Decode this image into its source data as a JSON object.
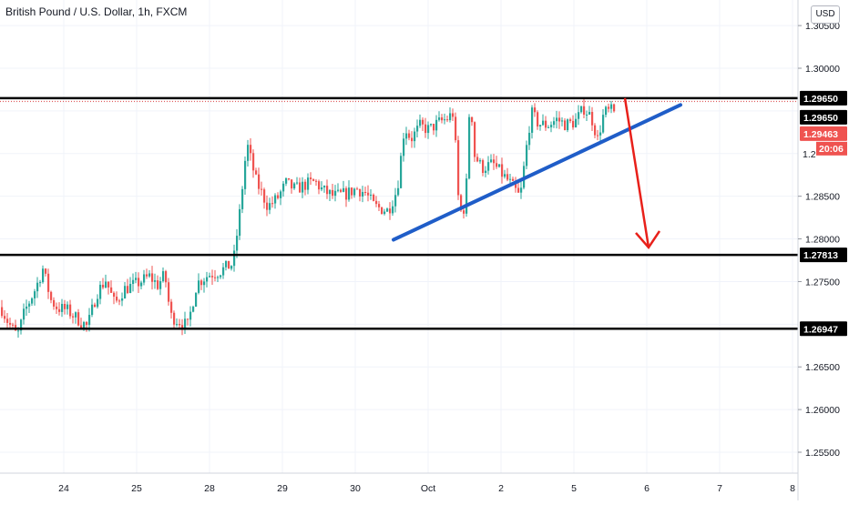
{
  "title": "British Pound / U.S. Dollar, 1h, FXCM",
  "currency_label": "USD",
  "colors": {
    "up": "#26a69a",
    "down": "#ef5350",
    "level_line": "#000000",
    "trendline": "#1f5dc8",
    "arrow": "#e8201a",
    "price_label_bg": "#000000",
    "current_price_bg": "#ef5350",
    "grid": "#f0f3fa"
  },
  "chart_data": {
    "type": "candlestick",
    "title": "British Pound / U.S. Dollar, 1h, FXCM",
    "ylim": [
      1.251,
      1.3068
    ],
    "y_ticks": [
      "1.30500",
      "1.30000",
      "1.28500",
      "1.28000",
      "1.27500",
      "1.26500",
      "1.26000",
      "1.25500"
    ],
    "x_ticks": [
      {
        "label": "24",
        "index": 70
      },
      {
        "label": "25",
        "index": 150
      },
      {
        "label": "28",
        "index": 230
      },
      {
        "label": "29",
        "index": 310
      },
      {
        "label": "30",
        "index": 390
      },
      {
        "label": "Oct",
        "index": 470
      },
      {
        "label": "2",
        "index": 550
      },
      {
        "label": "5",
        "index": 630
      },
      {
        "label": "6",
        "index": 710
      },
      {
        "label": "7",
        "index": 790
      },
      {
        "label": "8",
        "index": 870
      }
    ],
    "anchors": [
      [
        0,
        1.272
      ],
      [
        8,
        1.2702
      ],
      [
        18,
        1.2686
      ],
      [
        26,
        1.2715
      ],
      [
        38,
        1.2742
      ],
      [
        46,
        1.2765
      ],
      [
        55,
        1.2728
      ],
      [
        62,
        1.2719
      ],
      [
        72,
        1.2717
      ],
      [
        82,
        1.2708
      ],
      [
        95,
        1.2697
      ],
      [
        105,
        1.2736
      ],
      [
        115,
        1.2752
      ],
      [
        125,
        1.2723
      ],
      [
        135,
        1.2741
      ],
      [
        150,
        1.2748
      ],
      [
        163,
        1.2756
      ],
      [
        172,
        1.2746
      ],
      [
        180,
        1.2758
      ],
      [
        186,
        1.271
      ],
      [
        193,
        1.2705
      ],
      [
        205,
        1.2698
      ],
      [
        215,
        1.2748
      ],
      [
        228,
        1.2758
      ],
      [
        240,
        1.2762
      ],
      [
        255,
        1.2771
      ],
      [
        262,
        1.283
      ],
      [
        270,
        1.2912
      ],
      [
        280,
        1.2868
      ],
      [
        293,
        1.2838
      ],
      [
        303,
        1.2847
      ],
      [
        313,
        1.2865
      ],
      [
        323,
        1.2858
      ],
      [
        335,
        1.2864
      ],
      [
        345,
        1.2867
      ],
      [
        353,
        1.2857
      ],
      [
        365,
        1.285
      ],
      [
        380,
        1.2853
      ],
      [
        390,
        1.2859
      ],
      [
        400,
        1.2854
      ],
      [
        410,
        1.2838
      ],
      [
        425,
        1.2833
      ],
      [
        435,
        1.2858
      ],
      [
        443,
        1.2932
      ],
      [
        450,
        1.2917
      ],
      [
        460,
        1.2932
      ],
      [
        470,
        1.2928
      ],
      [
        480,
        1.2936
      ],
      [
        490,
        1.2941
      ],
      [
        497,
        1.2948
      ],
      [
        503,
        1.283
      ],
      [
        510,
        1.2838
      ],
      [
        515,
        1.2972
      ],
      [
        520,
        1.2898
      ],
      [
        528,
        1.2883
      ],
      [
        540,
        1.2888
      ],
      [
        550,
        1.2876
      ],
      [
        560,
        1.2864
      ],
      [
        570,
        1.2848
      ],
      [
        576,
        1.29
      ],
      [
        582,
        1.2948
      ],
      [
        590,
        1.2935
      ],
      [
        600,
        1.2933
      ],
      [
        610,
        1.294
      ],
      [
        620,
        1.2934
      ],
      [
        630,
        1.2937
      ],
      [
        640,
        1.2953
      ],
      [
        648,
        1.2943
      ],
      [
        655,
        1.2917
      ],
      [
        662,
        1.2948
      ],
      [
        670,
        1.295
      ],
      [
        674,
        1.2946
      ]
    ],
    "levels": [
      {
        "price": 1.2965,
        "label": "1.29650"
      },
      {
        "price": 1.27813,
        "label": "1.27813"
      },
      {
        "price": 1.26947,
        "label": "1.26947"
      }
    ],
    "price_tags": [
      {
        "price": 1.2965,
        "label": "1.29650"
      },
      {
        "price": 1.2965,
        "label": "1.29650"
      },
      {
        "price": 1.29463,
        "label": "1.29463",
        "countdown": "20:06"
      }
    ],
    "trendline": {
      "start": [
        432,
        1.2799
      ],
      "end": [
        747,
        1.2957
      ]
    },
    "forecast_arrow": {
      "start": [
        686,
        1.2965
      ],
      "end": [
        712,
        1.279
      ]
    }
  }
}
